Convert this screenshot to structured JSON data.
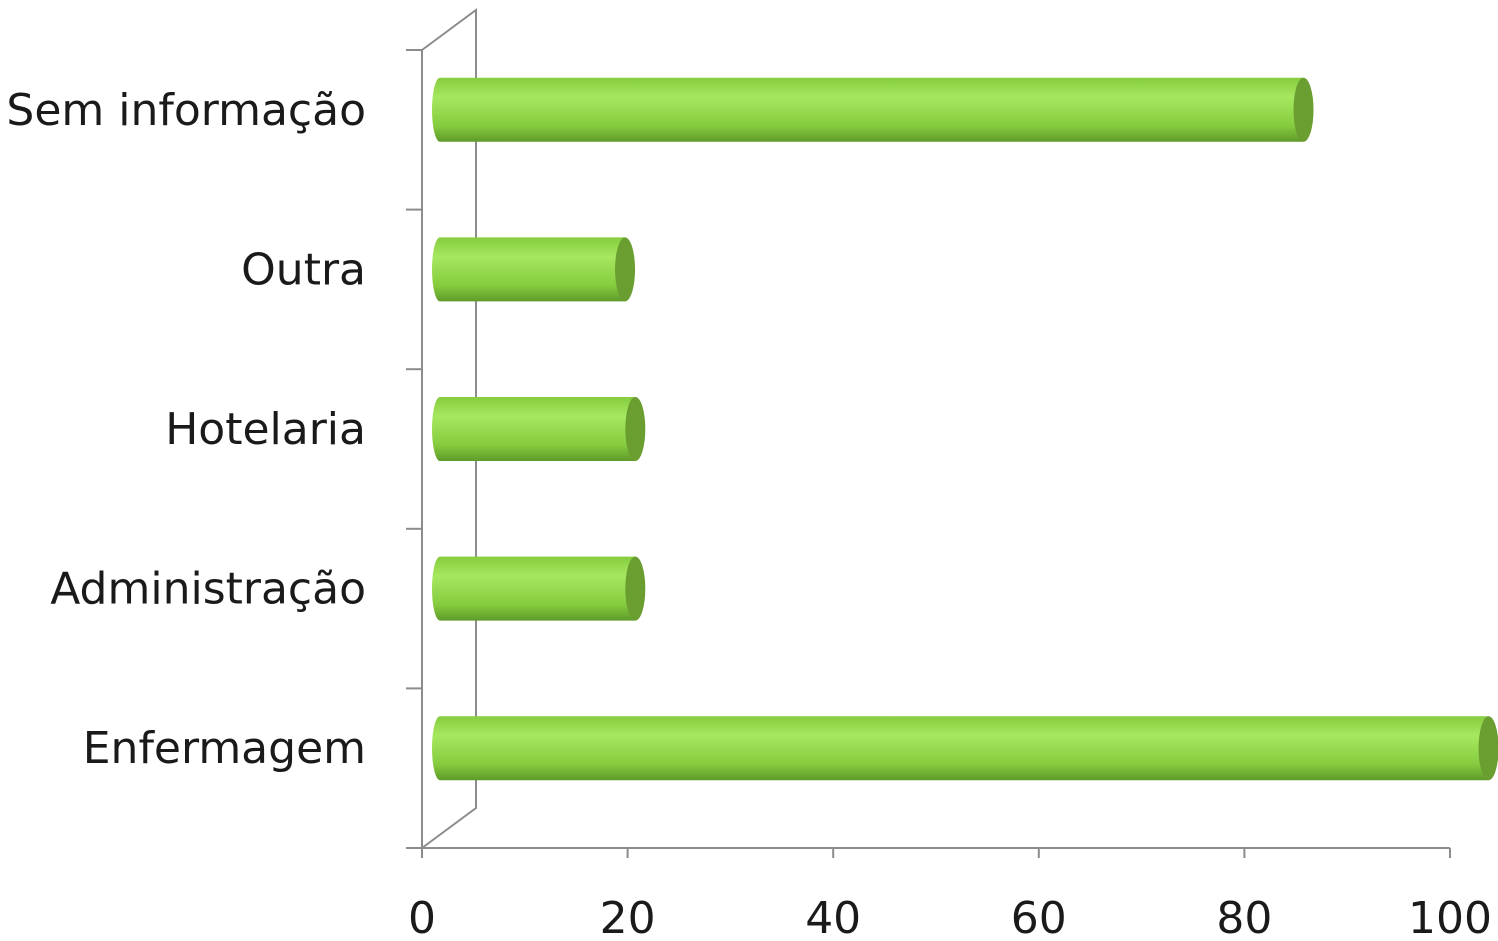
{
  "chart_data": {
    "type": "bar",
    "orientation": "horizontal",
    "style": "3d-cylinder",
    "categories": [
      "Sem informação",
      "Outra",
      "Hotelaria",
      "Administração",
      "Enfermagem"
    ],
    "values": [
      84,
      18,
      19,
      19,
      102
    ],
    "xlim": [
      0,
      100
    ],
    "xticks": [
      "0",
      "20",
      "40",
      "60",
      "80",
      "100"
    ],
    "title": "",
    "xlabel": "",
    "ylabel": "",
    "grid": false,
    "legend": "none",
    "colors": {
      "bar_light": "#a6e860",
      "bar_mid": "#86cc3e",
      "bar_dark": "#5e9a2a",
      "bar_cap": "#6a9e30",
      "axis": "#8c8c8c"
    }
  }
}
